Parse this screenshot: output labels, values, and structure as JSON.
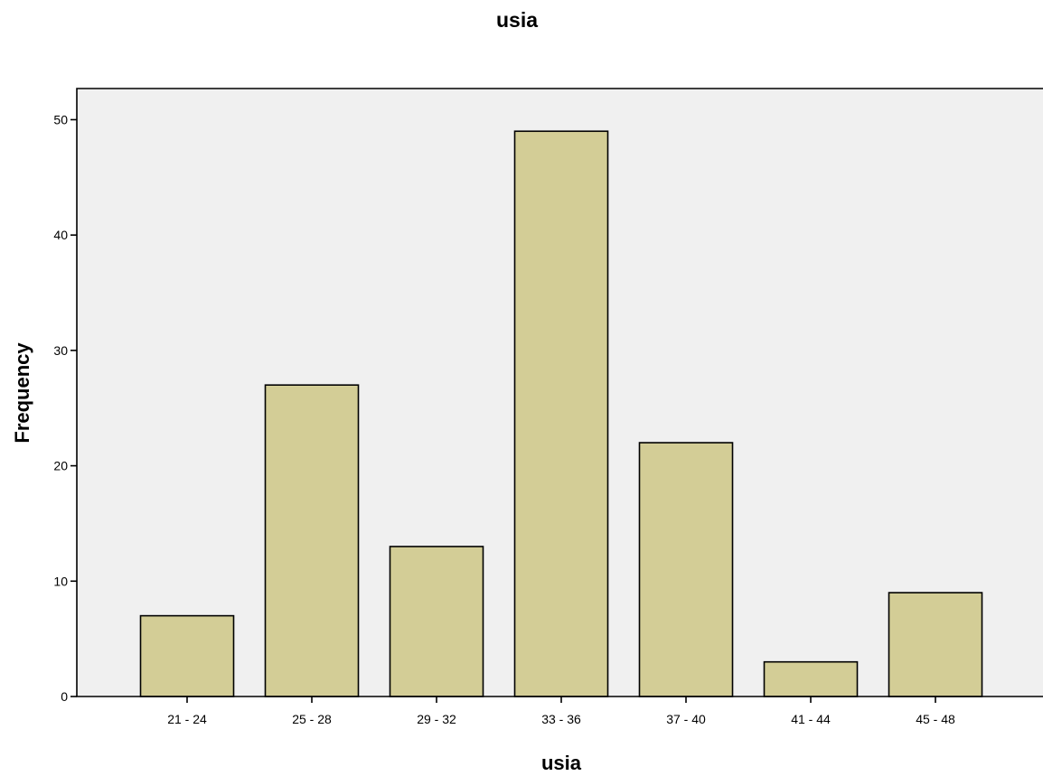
{
  "chart_data": {
    "type": "bar",
    "title": "usia",
    "xlabel": "usia",
    "ylabel": "Frequency",
    "categories": [
      "21 - 24",
      "25 - 28",
      "29 - 32",
      "33 - 36",
      "37 - 40",
      "41 - 44",
      "45 - 48"
    ],
    "values": [
      7,
      27,
      13,
      49,
      22,
      3,
      9
    ],
    "ylim": [
      0,
      52.7
    ],
    "yticks": [
      0,
      10,
      20,
      30,
      40,
      50
    ],
    "grid": false,
    "colors": {
      "bar_fill": "#d3cd96",
      "plot_background": "#f0f0f0"
    }
  }
}
